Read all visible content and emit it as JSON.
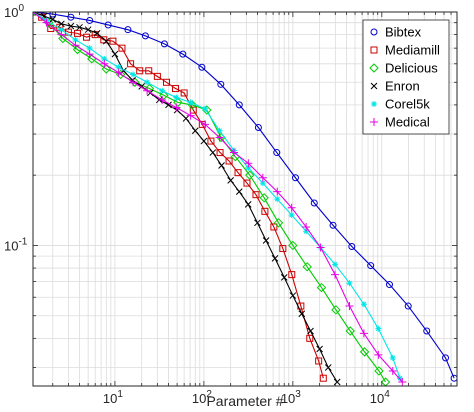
{
  "chart_data": {
    "type": "line",
    "title": "",
    "xlabel": "Parameter #",
    "ylabel": "",
    "xscale": "log",
    "yscale": "log",
    "xlim": [
      1.2,
      70000
    ],
    "ylim": [
      0.025,
      1
    ],
    "grid": true,
    "legend": "top-right",
    "x_ticks": [
      {
        "value": 10,
        "base": "10",
        "exp": "1"
      },
      {
        "value": 100,
        "base": "10",
        "exp": "2"
      },
      {
        "value": 1000,
        "base": "10",
        "exp": "3"
      },
      {
        "value": 10000,
        "base": "10",
        "exp": "4"
      }
    ],
    "y_ticks": [
      {
        "value": 1,
        "base": "10",
        "exp": "0"
      },
      {
        "value": 0.1,
        "base": "10",
        "exp": "-1"
      }
    ],
    "series": [
      {
        "name": "Bibtex",
        "color": "#0000cc",
        "marker": "circle",
        "x": [
          1.2,
          2,
          3.2,
          5.2,
          8.4,
          14,
          22,
          36,
          58,
          95,
          155,
          250,
          410,
          660,
          1070,
          1740,
          2830,
          4600,
          7500,
          12200,
          19800,
          32000,
          52000,
          65000
        ],
        "y": [
          1,
          0.98,
          0.95,
          0.92,
          0.88,
          0.84,
          0.79,
          0.73,
          0.66,
          0.58,
          0.49,
          0.4,
          0.32,
          0.25,
          0.195,
          0.152,
          0.122,
          0.099,
          0.082,
          0.068,
          0.055,
          0.043,
          0.033,
          0.027
        ]
      },
      {
        "name": "Mediamill",
        "color": "#cc0000",
        "marker": "square",
        "x": [
          1.2,
          1.5,
          1.9,
          2.4,
          3.0,
          3.8,
          4.8,
          6,
          7.5,
          9.5,
          12,
          15,
          19,
          24,
          30,
          38,
          48,
          60,
          76,
          96,
          120,
          152,
          192,
          242,
          305,
          385,
          485,
          612,
          772,
          973,
          1230,
          1550,
          1950,
          2200
        ],
        "y": [
          1,
          0.95,
          0.85,
          0.86,
          0.82,
          0.81,
          0.78,
          0.8,
          0.76,
          0.75,
          0.7,
          0.6,
          0.56,
          0.56,
          0.53,
          0.5,
          0.47,
          0.45,
          0.38,
          0.33,
          0.28,
          0.25,
          0.23,
          0.205,
          0.185,
          0.165,
          0.14,
          0.12,
          0.097,
          0.075,
          0.055,
          0.04,
          0.032,
          0.027
        ]
      },
      {
        "name": "Delicious",
        "color": "#00cc00",
        "marker": "diamond",
        "x": [
          1.2,
          1.8,
          2.6,
          3.8,
          5.5,
          8,
          11.6,
          16.8,
          24.4,
          35.4,
          51,
          74,
          108,
          156,
          226,
          328,
          476,
          690,
          1000,
          1450,
          2100,
          3050,
          4420,
          6400,
          9300,
          11000
        ],
        "y": [
          1,
          0.9,
          0.77,
          0.69,
          0.63,
          0.57,
          0.54,
          0.5,
          0.47,
          0.44,
          0.41,
          0.4,
          0.38,
          0.29,
          0.24,
          0.2,
          0.16,
          0.125,
          0.1,
          0.081,
          0.066,
          0.053,
          0.043,
          0.035,
          0.029,
          0.026
        ]
      },
      {
        "name": "Enron",
        "color": "#000000",
        "marker": "cross",
        "x": [
          1.2,
          1.6,
          2.0,
          2.5,
          3.2,
          4,
          5,
          6.3,
          8,
          10,
          12.5,
          15.8,
          20,
          25,
          31.5,
          40,
          50,
          63,
          80,
          100,
          126,
          158,
          200,
          250,
          315,
          400,
          500,
          630,
          800,
          1000,
          1260,
          1580,
          2000,
          2500,
          3150
        ],
        "y": [
          1,
          0.96,
          0.93,
          0.89,
          0.87,
          0.86,
          0.84,
          0.81,
          0.75,
          0.66,
          0.56,
          0.51,
          0.48,
          0.45,
          0.42,
          0.4,
          0.38,
          0.35,
          0.31,
          0.28,
          0.25,
          0.22,
          0.19,
          0.17,
          0.15,
          0.125,
          0.105,
          0.088,
          0.073,
          0.061,
          0.051,
          0.043,
          0.036,
          0.03,
          0.026
        ]
      },
      {
        "name": "Corel5k",
        "color": "#00e6e6",
        "marker": "star",
        "x": [
          1.2,
          1.7,
          2.5,
          3.6,
          5.2,
          7.6,
          11,
          16,
          23,
          34,
          49,
          71,
          103,
          150,
          218,
          316,
          460,
          668,
          970,
          1410,
          2050,
          2980,
          4330,
          6290,
          9140,
          13280,
          16000
        ],
        "y": [
          1,
          0.92,
          0.84,
          0.76,
          0.7,
          0.63,
          0.58,
          0.54,
          0.5,
          0.46,
          0.43,
          0.41,
          0.385,
          0.31,
          0.255,
          0.215,
          0.185,
          0.158,
          0.135,
          0.115,
          0.098,
          0.083,
          0.069,
          0.056,
          0.044,
          0.033,
          0.027
        ]
      },
      {
        "name": "Medical",
        "color": "#e600e6",
        "marker": "plus",
        "x": [
          1.2,
          1.7,
          2.5,
          3.6,
          5.2,
          7.6,
          11,
          16,
          23,
          34,
          49,
          71,
          103,
          150,
          218,
          316,
          460,
          668,
          970,
          1410,
          2050,
          2980,
          4330,
          6290,
          9140,
          13280,
          17000
        ],
        "y": [
          1,
          0.9,
          0.8,
          0.72,
          0.66,
          0.6,
          0.55,
          0.5,
          0.46,
          0.42,
          0.39,
          0.36,
          0.33,
          0.29,
          0.25,
          0.225,
          0.195,
          0.17,
          0.145,
          0.12,
          0.098,
          0.075,
          0.055,
          0.042,
          0.034,
          0.029,
          0.026
        ]
      }
    ]
  }
}
